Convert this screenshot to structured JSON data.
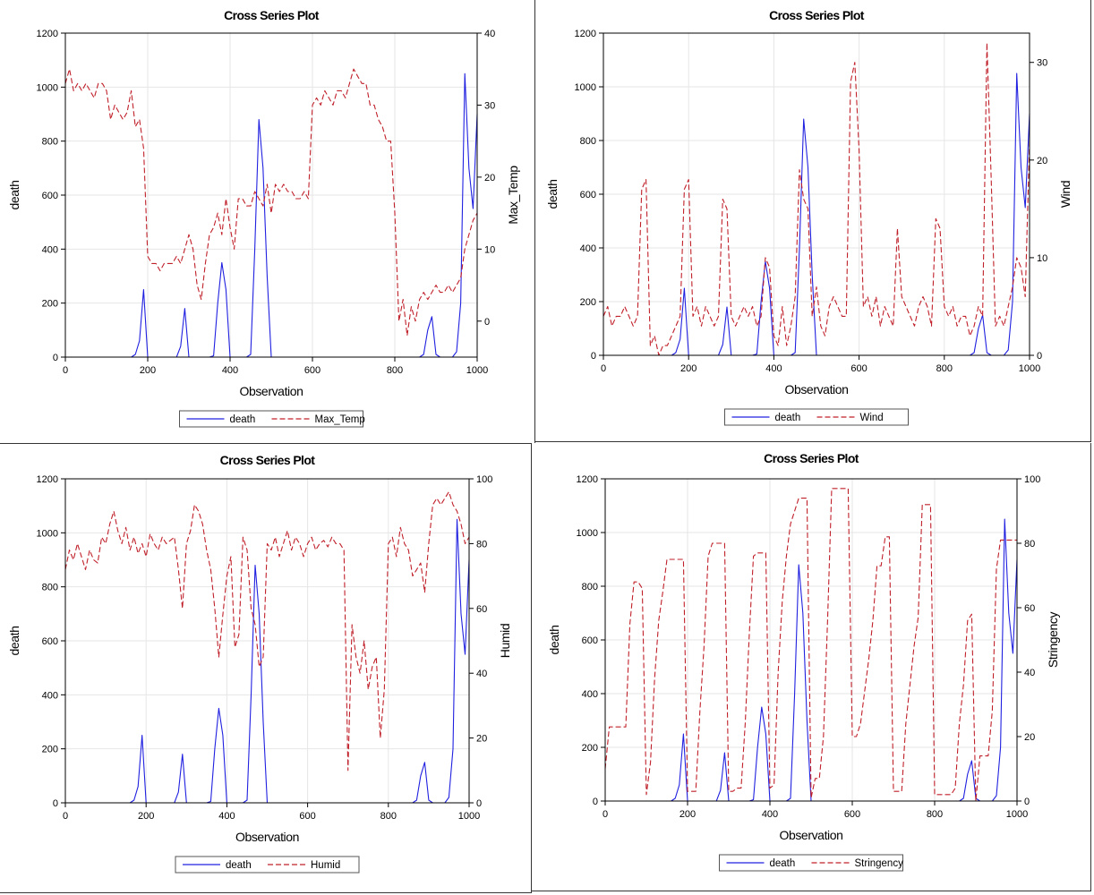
{
  "chart_data": [
    {
      "type": "line",
      "title": "Cross Series Plot",
      "xlabel": "Observation",
      "ylabel": "death",
      "y2label": "Max_Temp",
      "xlim": [
        0,
        1000
      ],
      "ylim": [
        0,
        1200
      ],
      "y2lim": [
        -5,
        40
      ],
      "xticks": [
        0,
        200,
        400,
        600,
        800,
        1000
      ],
      "yticks": [
        0,
        200,
        400,
        600,
        800,
        1000,
        1200
      ],
      "y2ticks": [
        0,
        10,
        20,
        30,
        40
      ],
      "x_step": 10,
      "series": [
        {
          "name": "death",
          "axis": "left",
          "color": "#2020e0",
          "style": "solid",
          "values": [
            0,
            0,
            0,
            0,
            0,
            0,
            0,
            0,
            0,
            0,
            0,
            0,
            0,
            0,
            0,
            0,
            0,
            10,
            60,
            250,
            0,
            0,
            0,
            0,
            0,
            0,
            0,
            0,
            40,
            180,
            0,
            0,
            0,
            0,
            0,
            0,
            5,
            200,
            350,
            250,
            0,
            0,
            0,
            0,
            0,
            10,
            400,
            880,
            700,
            300,
            0,
            0,
            0,
            0,
            0,
            0,
            0,
            0,
            0,
            0,
            0,
            0,
            0,
            0,
            0,
            0,
            0,
            0,
            0,
            0,
            0,
            0,
            0,
            0,
            0,
            0,
            0,
            0,
            0,
            0,
            0,
            0,
            0,
            0,
            0,
            0,
            0,
            10,
            100,
            150,
            10,
            0,
            0,
            0,
            0,
            20,
            200,
            1050,
            700,
            550,
            900
          ]
        },
        {
          "name": "Max_Temp",
          "axis": "right",
          "color": "#c0202a",
          "style": "dashed",
          "values": [
            33,
            35,
            32,
            33,
            32,
            33,
            32,
            31,
            33,
            33,
            32,
            28,
            30,
            29,
            28,
            29,
            32,
            27,
            28,
            24,
            9,
            8,
            8,
            7,
            8,
            8,
            8,
            9,
            8,
            10,
            12,
            10,
            5,
            3,
            8,
            12,
            13,
            15,
            12,
            17,
            13,
            10,
            17,
            17,
            16,
            16,
            18,
            17,
            16,
            19,
            15,
            19,
            18,
            19,
            18,
            18,
            17,
            17,
            18,
            17,
            30,
            31,
            30,
            32,
            31,
            30,
            32,
            32,
            31,
            33,
            35,
            34,
            33,
            33,
            30,
            30,
            28,
            27,
            25,
            25,
            15,
            0,
            3,
            -2,
            2,
            0,
            3,
            4,
            3,
            4,
            5,
            4,
            4,
            5,
            4,
            5,
            6,
            10,
            12,
            14,
            15
          ]
        }
      ]
    },
    {
      "type": "line",
      "title": "Cross Series Plot",
      "xlabel": "Observation",
      "ylabel": "death",
      "y2label": "Wind",
      "xlim": [
        0,
        1000
      ],
      "ylim": [
        0,
        1200
      ],
      "y2lim": [
        0,
        33
      ],
      "xticks": [
        0,
        200,
        400,
        600,
        800,
        1000
      ],
      "yticks": [
        0,
        200,
        400,
        600,
        800,
        1000,
        1200
      ],
      "y2ticks": [
        0,
        10,
        20,
        30
      ],
      "x_step": 10,
      "series": [
        {
          "name": "death",
          "axis": "left",
          "color": "#2020e0",
          "style": "solid",
          "values": [
            0,
            0,
            0,
            0,
            0,
            0,
            0,
            0,
            0,
            0,
            0,
            0,
            0,
            0,
            0,
            0,
            0,
            10,
            60,
            250,
            0,
            0,
            0,
            0,
            0,
            0,
            0,
            0,
            40,
            180,
            0,
            0,
            0,
            0,
            0,
            0,
            5,
            200,
            350,
            250,
            0,
            0,
            0,
            0,
            0,
            10,
            400,
            880,
            700,
            300,
            0,
            0,
            0,
            0,
            0,
            0,
            0,
            0,
            0,
            0,
            0,
            0,
            0,
            0,
            0,
            0,
            0,
            0,
            0,
            0,
            0,
            0,
            0,
            0,
            0,
            0,
            0,
            0,
            0,
            0,
            0,
            0,
            0,
            0,
            0,
            0,
            0,
            10,
            100,
            150,
            10,
            0,
            0,
            0,
            0,
            20,
            200,
            1050,
            700,
            550,
            900
          ]
        },
        {
          "name": "Wind",
          "axis": "right",
          "color": "#c0202a",
          "style": "dashed",
          "values": [
            4,
            5,
            3,
            4,
            4,
            5,
            4,
            3,
            4,
            17,
            18,
            1,
            2,
            0,
            1,
            1,
            2,
            3,
            4,
            17,
            18,
            4,
            5,
            3,
            5,
            4,
            3,
            4,
            16,
            15,
            4,
            3,
            4,
            5,
            4,
            5,
            3,
            4,
            10,
            9,
            2,
            1,
            5,
            1,
            3,
            6,
            19,
            16,
            15,
            4,
            7,
            3,
            2,
            5,
            6,
            5,
            4,
            4,
            28,
            30,
            21,
            5,
            6,
            4,
            6,
            3,
            5,
            4,
            3,
            13,
            6,
            5,
            4,
            3,
            5,
            6,
            5,
            3,
            14,
            13,
            5,
            4,
            5,
            3,
            4,
            4,
            2,
            3,
            5,
            4,
            32,
            18,
            3,
            4,
            3,
            5,
            7,
            10,
            9,
            6,
            22
          ]
        }
      ]
    },
    {
      "type": "line",
      "title": "Cross Series Plot",
      "xlabel": "Observation",
      "ylabel": "death",
      "y2label": "Humid",
      "xlim": [
        0,
        1000
      ],
      "ylim": [
        0,
        1200
      ],
      "y2lim": [
        0,
        100
      ],
      "xticks": [
        0,
        200,
        400,
        600,
        800,
        1000
      ],
      "yticks": [
        0,
        200,
        400,
        600,
        800,
        1000,
        1200
      ],
      "y2ticks": [
        0,
        20,
        40,
        60,
        80,
        100
      ],
      "x_step": 10,
      "series": [
        {
          "name": "death",
          "axis": "left",
          "color": "#2020e0",
          "style": "solid",
          "values": [
            0,
            0,
            0,
            0,
            0,
            0,
            0,
            0,
            0,
            0,
            0,
            0,
            0,
            0,
            0,
            0,
            0,
            10,
            60,
            250,
            0,
            0,
            0,
            0,
            0,
            0,
            0,
            0,
            40,
            180,
            0,
            0,
            0,
            0,
            0,
            0,
            5,
            200,
            350,
            250,
            0,
            0,
            0,
            0,
            0,
            10,
            400,
            880,
            700,
            300,
            0,
            0,
            0,
            0,
            0,
            0,
            0,
            0,
            0,
            0,
            0,
            0,
            0,
            0,
            0,
            0,
            0,
            0,
            0,
            0,
            0,
            0,
            0,
            0,
            0,
            0,
            0,
            0,
            0,
            0,
            0,
            0,
            0,
            0,
            0,
            0,
            0,
            10,
            100,
            150,
            10,
            0,
            0,
            0,
            0,
            20,
            200,
            1050,
            700,
            550,
            900
          ]
        },
        {
          "name": "Humid",
          "axis": "right",
          "color": "#c0202a",
          "style": "dashed",
          "values": [
            72,
            78,
            75,
            80,
            76,
            72,
            78,
            75,
            74,
            82,
            80,
            86,
            90,
            84,
            80,
            85,
            78,
            82,
            77,
            80,
            76,
            83,
            80,
            78,
            82,
            80,
            81,
            82,
            72,
            60,
            80,
            84,
            92,
            90,
            86,
            78,
            72,
            60,
            45,
            58,
            70,
            76,
            48,
            52,
            82,
            78,
            60,
            55,
            42,
            45,
            80,
            78,
            82,
            76,
            80,
            84,
            78,
            82,
            80,
            76,
            80,
            82,
            78,
            80,
            81,
            79,
            82,
            80,
            80,
            78,
            10,
            55,
            45,
            40,
            50,
            35,
            42,
            45,
            20,
            35,
            80,
            82,
            76,
            85,
            80,
            78,
            70,
            72,
            74,
            65,
            80,
            92,
            94,
            92,
            94,
            96,
            92,
            90,
            86,
            80,
            82
          ]
        }
      ]
    },
    {
      "type": "line",
      "title": "Cross Series Plot",
      "xlabel": "Observation",
      "ylabel": "death",
      "y2label": "Stringency",
      "xlim": [
        0,
        1000
      ],
      "ylim": [
        0,
        1200
      ],
      "y2lim": [
        0,
        100
      ],
      "xticks": [
        0,
        200,
        400,
        600,
        800,
        1000
      ],
      "yticks": [
        0,
        200,
        400,
        600,
        800,
        1000,
        1200
      ],
      "y2ticks": [
        0,
        20,
        40,
        60,
        80,
        100
      ],
      "x_step": 10,
      "series": [
        {
          "name": "death",
          "axis": "left",
          "color": "#2020e0",
          "style": "solid",
          "values": [
            0,
            0,
            0,
            0,
            0,
            0,
            0,
            0,
            0,
            0,
            0,
            0,
            0,
            0,
            0,
            0,
            0,
            10,
            60,
            250,
            0,
            0,
            0,
            0,
            0,
            0,
            0,
            0,
            40,
            180,
            0,
            0,
            0,
            0,
            0,
            0,
            5,
            200,
            350,
            250,
            0,
            0,
            0,
            0,
            0,
            10,
            400,
            880,
            700,
            300,
            0,
            0,
            0,
            0,
            0,
            0,
            0,
            0,
            0,
            0,
            0,
            0,
            0,
            0,
            0,
            0,
            0,
            0,
            0,
            0,
            0,
            0,
            0,
            0,
            0,
            0,
            0,
            0,
            0,
            0,
            0,
            0,
            0,
            0,
            0,
            0,
            0,
            10,
            100,
            150,
            10,
            0,
            0,
            0,
            0,
            20,
            200,
            1050,
            700,
            550,
            900
          ]
        },
        {
          "name": "Stringency",
          "axis": "right",
          "color": "#c0202a",
          "style": "dashed",
          "values": [
            10,
            23,
            23,
            23,
            23,
            23,
            55,
            68,
            68,
            66,
            2,
            12,
            38,
            56,
            65,
            75,
            75,
            75,
            75,
            75,
            3,
            3,
            3,
            28,
            48,
            76,
            80,
            80,
            80,
            80,
            3,
            3,
            4,
            4,
            24,
            52,
            76,
            77,
            77,
            77,
            4,
            5,
            40,
            62,
            76,
            86,
            90,
            94,
            94,
            94,
            1,
            7,
            7,
            20,
            56,
            97,
            97,
            97,
            97,
            97,
            20,
            20,
            24,
            34,
            44,
            56,
            73,
            73,
            82,
            82,
            3,
            3,
            3,
            24,
            36,
            48,
            57,
            92,
            92,
            92,
            2,
            2,
            2,
            2,
            2,
            4,
            24,
            36,
            56,
            58,
            0,
            14,
            14,
            14,
            28,
            72,
            81,
            81,
            81,
            81,
            81
          ]
        }
      ]
    }
  ]
}
